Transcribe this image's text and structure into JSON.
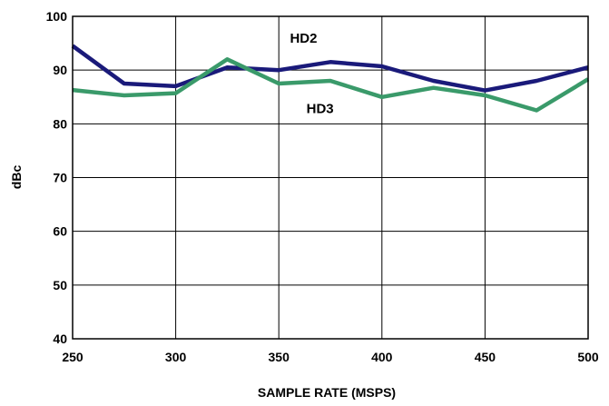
{
  "chart_data": {
    "type": "line",
    "title": "",
    "xlabel": "SAMPLE RATE (MSPS)",
    "ylabel": "dBc",
    "xlim": [
      250,
      500
    ],
    "ylim": [
      40,
      100
    ],
    "x_ticks": [
      250,
      300,
      350,
      400,
      450,
      500
    ],
    "y_ticks": [
      40,
      50,
      60,
      70,
      80,
      90,
      100
    ],
    "grid": true,
    "series": [
      {
        "name": "HD2",
        "color": "#1a1a7a",
        "x": [
          250,
          275,
          300,
          325,
          350,
          375,
          400,
          425,
          450,
          475,
          500
        ],
        "y": [
          94.5,
          87.5,
          87.0,
          90.5,
          90.0,
          91.5,
          90.7,
          88.0,
          86.2,
          88.0,
          90.5
        ]
      },
      {
        "name": "HD3",
        "color": "#3a9a6a",
        "x": [
          250,
          275,
          300,
          325,
          350,
          375,
          400,
          425,
          450,
          475,
          500
        ],
        "y": [
          86.3,
          85.3,
          85.7,
          92.0,
          87.5,
          88.0,
          85.0,
          86.7,
          85.3,
          82.5,
          88.3
        ]
      }
    ]
  }
}
